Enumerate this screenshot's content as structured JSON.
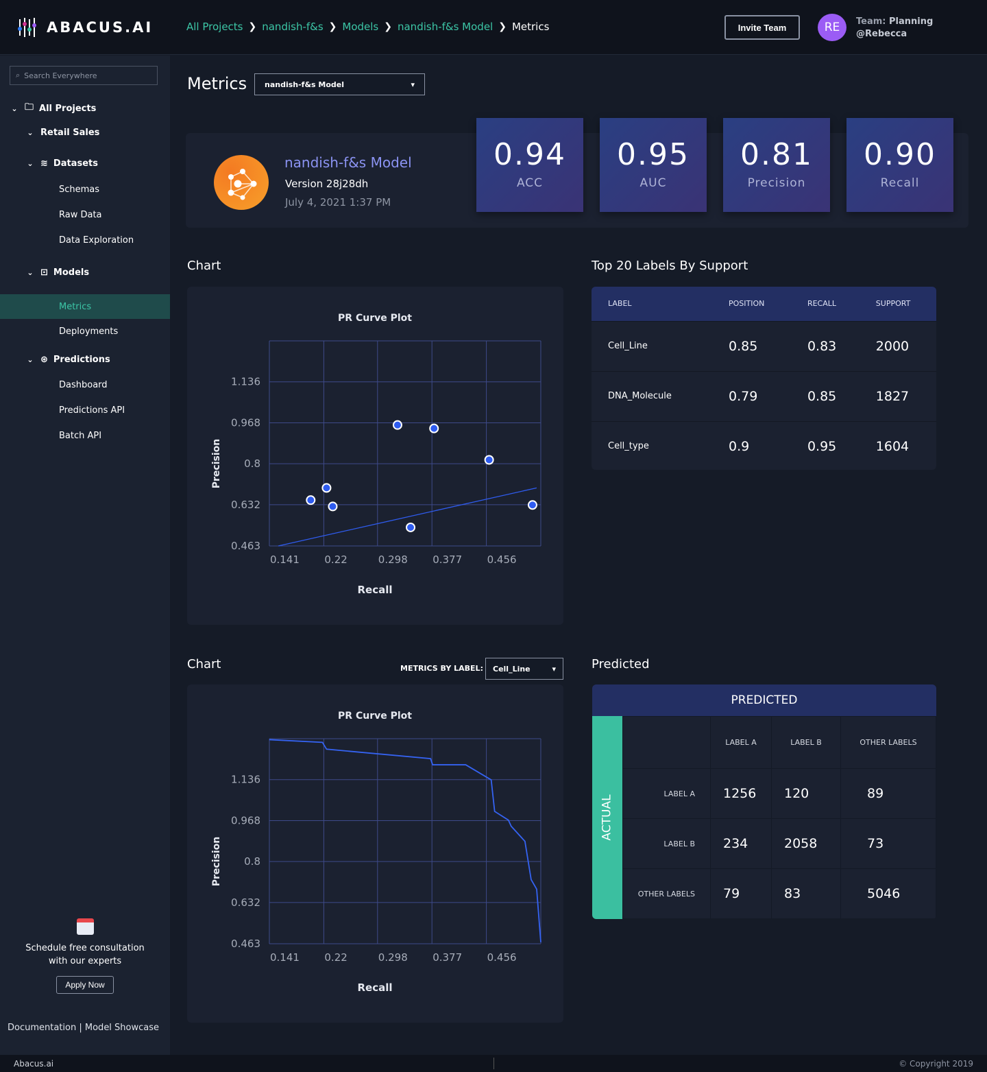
{
  "header": {
    "brand": "ABACUS.AI",
    "breadcrumbs": [
      "All Projects",
      "nandish-f&s",
      "Models",
      "nandish-f&s Model",
      "Metrics"
    ],
    "invite": "Invite Team",
    "avatar": "RE",
    "team_label": "Team:",
    "team": "Planning",
    "user": "@Rebecca"
  },
  "sidebar": {
    "search_placeholder": "Search Everywhere",
    "all_projects": "All Projects",
    "retail": "Retail Sales",
    "datasets": "Datasets",
    "schemas": "Schemas",
    "raw": "Raw Data",
    "explore": "Data Exploration",
    "models": "Models",
    "metrics": "Metrics",
    "deployments": "Deployments",
    "predictions": "Predictions",
    "dashboard": "Dashboard",
    "pred_api": "Predictions API",
    "batch_api": "Batch API",
    "consult1": "Schedule free consultation",
    "consult2": "with our experts",
    "apply": "Apply Now",
    "docs": "Documentation",
    "sep": "|",
    "showcase": "Model Showcase"
  },
  "page": {
    "title": "Metrics",
    "model_select": "nandish-f&s Model"
  },
  "model": {
    "name": "nandish-f&s Model",
    "version": "Version 28j28dh",
    "date": "July 4, 2021 1:37 PM"
  },
  "metrics": [
    {
      "value": "0.94",
      "label": "ACC"
    },
    {
      "value": "0.95",
      "label": "AUC"
    },
    {
      "value": "0.81",
      "label": "Precision"
    },
    {
      "value": "0.90",
      "label": "Recall"
    }
  ],
  "section1": {
    "chart_title": "Chart",
    "labels_title": "Top 20 Labels By Support"
  },
  "labels_table": {
    "headers": [
      "LABEL",
      "POSITION",
      "RECALL",
      "SUPPORT"
    ],
    "rows": [
      [
        "Cell_Line",
        "0.85",
        "0.83",
        "2000"
      ],
      [
        "DNA_Molecule",
        "0.79",
        "0.85",
        "1827"
      ],
      [
        "Cell_type",
        "0.9",
        "0.95",
        "1604"
      ]
    ]
  },
  "section2": {
    "chart_title": "Chart",
    "filter_label": "METRICS BY LABEL:",
    "filter_value": "Cell_Line",
    "predicted_title": "Predicted"
  },
  "confusion": {
    "predicted": "PREDICTED",
    "actual": "ACTUAL",
    "cols": [
      "LABEL A",
      "LABEL B",
      "OTHER LABELS"
    ],
    "rows": [
      {
        "label": "LABEL A",
        "values": [
          "1256",
          "120",
          "89"
        ]
      },
      {
        "label": "LABEL B",
        "values": [
          "234",
          "2058",
          "73"
        ]
      },
      {
        "label": "OTHER LABELS",
        "values": [
          "79",
          "83",
          "5046"
        ]
      }
    ]
  },
  "chart_data": [
    {
      "type": "scatter",
      "title": "PR Curve Plot",
      "xlabel": "Recall",
      "ylabel": "Precision",
      "xlim": [
        0.141,
        0.535
      ],
      "ylim": [
        0.463,
        1.304
      ],
      "xticks": [
        "0.141",
        "0.22",
        "0.298",
        "0.377",
        "0.456"
      ],
      "yticks": [
        "0.463",
        "0.632",
        "0.8",
        "0.968",
        "1.136"
      ],
      "grid": true,
      "points": [
        [
          0.201,
          0.651
        ],
        [
          0.224,
          0.701
        ],
        [
          0.233,
          0.625
        ],
        [
          0.327,
          0.959
        ],
        [
          0.346,
          0.539
        ],
        [
          0.38,
          0.945
        ],
        [
          0.46,
          0.816
        ],
        [
          0.523,
          0.631
        ]
      ],
      "trendline": [
        [
          0.154,
          0.463
        ],
        [
          0.529,
          0.701
        ]
      ]
    },
    {
      "type": "line",
      "title": "PR Curve Plot",
      "xlabel": "Recall",
      "ylabel": "Precision",
      "xlim": [
        0.141,
        0.535
      ],
      "ylim": [
        0.463,
        1.304
      ],
      "xticks": [
        "0.141",
        "0.22",
        "0.298",
        "0.377",
        "0.456"
      ],
      "yticks": [
        "0.463",
        "0.632",
        "0.8",
        "0.968",
        "1.136"
      ],
      "grid": true,
      "line": [
        [
          0.141,
          1.3
        ],
        [
          0.218,
          1.289
        ],
        [
          0.224,
          1.261
        ],
        [
          0.375,
          1.222
        ],
        [
          0.378,
          1.197
        ],
        [
          0.426,
          1.197
        ],
        [
          0.463,
          1.135
        ],
        [
          0.468,
          1.006
        ],
        [
          0.488,
          0.97
        ],
        [
          0.492,
          0.945
        ],
        [
          0.512,
          0.883
        ],
        [
          0.521,
          0.726
        ],
        [
          0.529,
          0.687
        ],
        [
          0.535,
          0.469
        ]
      ]
    }
  ],
  "colors": {
    "accent": "#3cc6a6",
    "link": "#8b93f2",
    "point": "#2f5cf0",
    "grid": "#3e4a8a",
    "metric_bg": "#2e3a7c"
  },
  "footer": {
    "left": "Abacus.ai",
    "right": "© Copyright 2019"
  }
}
